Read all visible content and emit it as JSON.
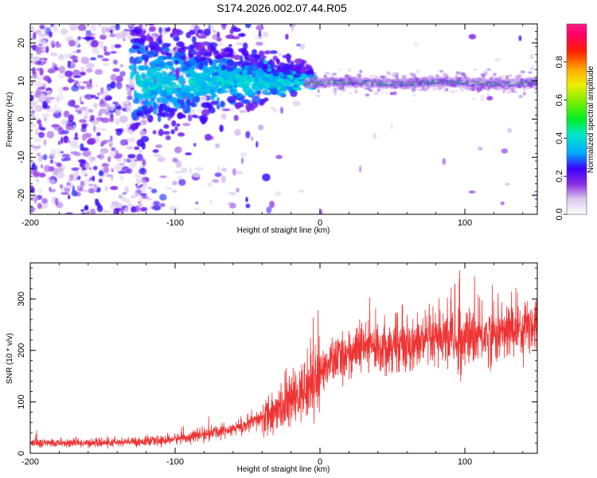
{
  "title": "S174.2026.002.07.44.R05",
  "chart_data": [
    {
      "type": "heatmap",
      "xlabel": "Height of straight line (km)",
      "ylabel": "Frequency (Hz)",
      "xlim": [
        -200,
        150
      ],
      "ylim": [
        -25,
        25
      ],
      "x_ticks": [
        -200,
        -100,
        0,
        100
      ],
      "x_tick_labels": [
        "-200",
        "-100",
        "0",
        "100"
      ],
      "y_ticks": [
        -20,
        -10,
        0,
        10,
        20
      ],
      "y_tick_labels": [
        "-20",
        "-10",
        "0",
        "10",
        "20"
      ],
      "colorbar": {
        "label": "Normalized spectral amplitude",
        "range": [
          0.0,
          1.0
        ],
        "ticks": [
          0.0,
          0.2,
          0.4,
          0.6,
          0.8
        ],
        "tick_labels": [
          "0.0",
          "0.2",
          "0.4",
          "0.6",
          "0.8"
        ]
      },
      "features": {
        "carrier_frequency_hz": 9.5,
        "occultation_boundary_km": -10,
        "noise_region_end_km": -120
      }
    },
    {
      "type": "line",
      "xlabel": "Height of straight line (km)",
      "ylabel": "SNR (10 * v/v)",
      "xlim": [
        -200,
        150
      ],
      "ylim": [
        0,
        370
      ],
      "x_ticks": [
        -200,
        -100,
        0,
        100
      ],
      "x_tick_labels": [
        "-200",
        "-100",
        "0",
        "100"
      ],
      "y_ticks": [
        0,
        100,
        200,
        300
      ],
      "y_tick_labels": [
        "0",
        "100",
        "200",
        "300"
      ],
      "series": [
        {
          "name": "SNR",
          "color": "#ee3333",
          "x": [
            -200,
            -150,
            -110,
            -90,
            -70,
            -50,
            -35,
            -25,
            -15,
            -10,
            -5,
            0,
            10,
            20,
            30,
            50,
            70,
            90,
            100,
            120,
            150
          ],
          "y": [
            20,
            20,
            24,
            32,
            42,
            55,
            75,
            90,
            110,
            125,
            140,
            160,
            180,
            195,
            205,
            210,
            215,
            220,
            225,
            230,
            255
          ]
        }
      ]
    }
  ]
}
